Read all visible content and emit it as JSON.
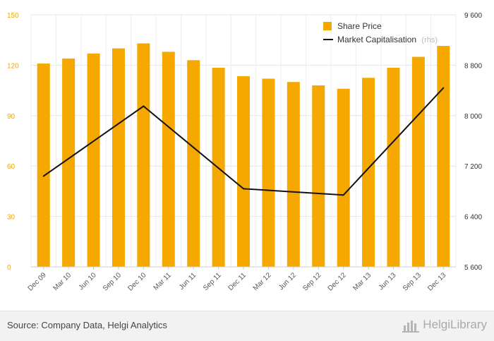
{
  "chart_data": {
    "type": "bar+line",
    "categories": [
      "Dec 09",
      "Mar 10",
      "Jun 10",
      "Sep 10",
      "Dec 10",
      "Mar 11",
      "Jun 11",
      "Sep 11",
      "Dec 11",
      "Mar 12",
      "Jun 12",
      "Sep 12",
      "Dec 12",
      "Mar 13",
      "Jun 13",
      "Sep 13",
      "Dec 13"
    ],
    "series": [
      {
        "name": "Share Price",
        "type": "bar",
        "axis": "left",
        "color": "#f5a800",
        "values": [
          121,
          124,
          127,
          130,
          133,
          128,
          123,
          118.5,
          113.5,
          112,
          110,
          108,
          106,
          112.5,
          118.5,
          125,
          131.5
        ]
      },
      {
        "name": "Market Capitalisation",
        "name_suffix": "(rhs)",
        "type": "line",
        "axis": "right",
        "color": "#111111",
        "points": [
          {
            "x": "Dec 09",
            "y": 7040
          },
          {
            "x": "Dec 10",
            "y": 8150
          },
          {
            "x": "Dec 11",
            "y": 6840
          },
          {
            "x": "Dec 12",
            "y": 6740
          },
          {
            "x": "Dec 13",
            "y": 8440
          }
        ]
      }
    ],
    "y_left": {
      "min": 0,
      "max": 150,
      "ticks": [
        "0",
        "30",
        "60",
        "90",
        "120",
        "150"
      ]
    },
    "y_right": {
      "min": 5600,
      "max": 9600,
      "ticks": [
        "5 600",
        "6 400",
        "7 200",
        "8 000",
        "8 800",
        "9 600"
      ]
    },
    "grid": true,
    "legend_position": "top-right"
  },
  "footer": {
    "source": "Source: Company Data, Helgi Analytics",
    "logo_text": "HelgiLibrary",
    "logo_icon": "helgi-logo-icon"
  }
}
